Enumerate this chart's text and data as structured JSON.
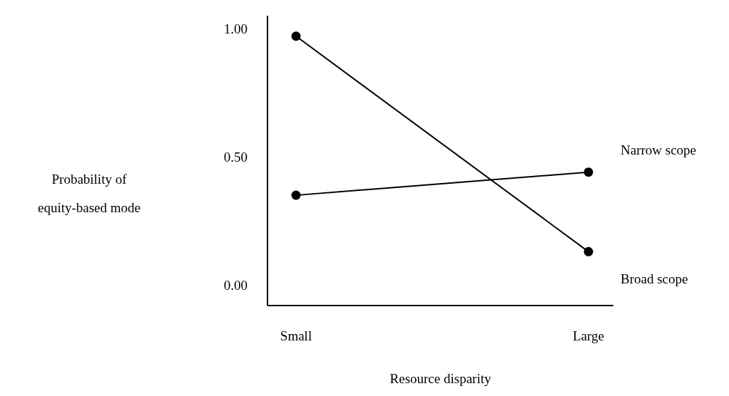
{
  "chart_data": {
    "type": "line",
    "xlabel": "Resource disparity",
    "ylabel": "Probability of equity-based mode",
    "categories": [
      "Small",
      "Large"
    ],
    "series": [
      {
        "name": "Narrow scope",
        "color": "#000000",
        "values": [
          0.35,
          0.44
        ]
      },
      {
        "name": "Broad scope",
        "color": "#000000",
        "values": [
          0.97,
          0.13
        ]
      }
    ],
    "ylim": [
      -0.08,
      1.05
    ],
    "yticks": [
      {
        "value": 0,
        "label": "0.00"
      },
      {
        "value": 0.5,
        "label": "0.50"
      },
      {
        "value": 1,
        "label": "1.00"
      }
    ],
    "grid": false,
    "legend": false,
    "marker": "circle",
    "line_style": "solid"
  }
}
